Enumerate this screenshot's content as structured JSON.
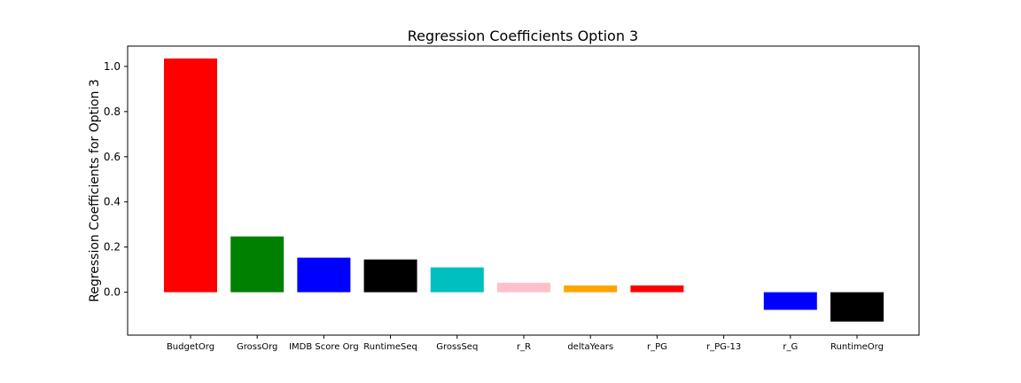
{
  "chart_data": {
    "type": "bar",
    "title": "Regression Coefficients Option 3",
    "xlabel": "",
    "ylabel": "Regression Coefficients for Option 3",
    "categories": [
      "BudgetOrg",
      "GrossOrg",
      "IMDB Score Org",
      "RuntimeSeq",
      "GrossSeq",
      "r_R",
      "deltaYears",
      "r_PG",
      "r_PG-13",
      "r_G",
      "RuntimeOrg"
    ],
    "values": [
      1.035,
      0.247,
      0.153,
      0.145,
      0.11,
      0.042,
      0.03,
      0.03,
      0.0,
      -0.078,
      -0.13
    ],
    "colors": [
      "#ff0000",
      "#008000",
      "#0000ff",
      "#000000",
      "#00bfbf",
      "#ffc0cb",
      "#ffa500",
      "#ff0000",
      "#ff0000",
      "#0000ff",
      "#000000"
    ],
    "ylim": [
      -0.19,
      1.09
    ],
    "yticks": [
      0.0,
      0.2,
      0.4,
      0.6,
      0.8,
      1.0
    ],
    "ytick_labels": [
      "0.0",
      "0.2",
      "0.4",
      "0.6",
      "0.8",
      "1.0"
    ],
    "grid": false,
    "legend": "none"
  }
}
